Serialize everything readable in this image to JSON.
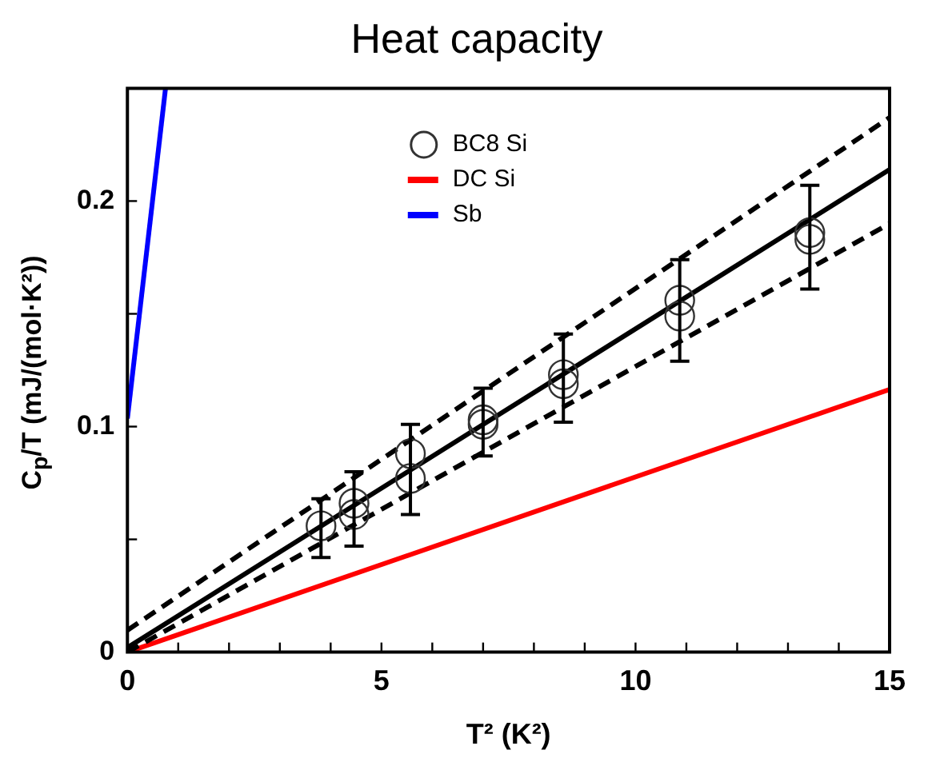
{
  "chart_data": {
    "type": "scatter",
    "title": "Heat capacity",
    "xlabel": "T² (K²)",
    "ylabel": "C$_{p}$/T (mJ/(mol·K²))",
    "xlim": [
      0,
      15
    ],
    "xticks": [
      0,
      {
        "value": 1,
        "label": null
      },
      {
        "value": 2,
        "label": null
      },
      {
        "value": 3,
        "label": null
      },
      {
        "value": 4,
        "label": null
      },
      5,
      {
        "value": 6,
        "label": null
      },
      {
        "value": 7,
        "label": null
      },
      {
        "value": 8,
        "label": null
      },
      {
        "value": 9,
        "label": null
      },
      10,
      {
        "value": 11,
        "label": null
      },
      {
        "value": 12,
        "label": null
      },
      {
        "value": 13,
        "label": null
      },
      {
        "value": 14,
        "label": null
      },
      15
    ],
    "ylim": [
      0,
      0.25
    ],
    "yticks": [
      0,
      {
        "value": 0.05,
        "label": null
      },
      0.1,
      {
        "value": 0.15,
        "label": null
      },
      0.2
    ],
    "grid": false,
    "legend": "top",
    "series": [
      {
        "name": "BC8 Si",
        "marker": "circle",
        "color": "#333333",
        "x": [
          3.81,
          4.46,
          4.46,
          5.57,
          5.57,
          7.0,
          7.0,
          8.58,
          8.58,
          10.87,
          10.87,
          13.43,
          13.43
        ],
        "values": [
          0.056,
          0.066,
          0.061,
          0.088,
          0.077,
          0.103,
          0.101,
          0.123,
          0.119,
          0.156,
          0.149,
          0.186,
          0.183
        ],
        "errors": [
          [
            0.042,
            0.068
          ],
          [
            0.047,
            0.08
          ],
          null,
          [
            0.061,
            0.101
          ],
          null,
          [
            0.087,
            0.117
          ],
          null,
          [
            0.102,
            0.141
          ],
          null,
          [
            0.129,
            0.174
          ],
          null,
          [
            0.161,
            0.207
          ],
          null
        ]
      },
      {
        "type": "line",
        "marker": "none",
        "line_style": "solid",
        "color": "#000000",
        "x": [
          0,
          15
        ],
        "values": [
          0.002,
          0.214
        ]
      },
      {
        "type": "line",
        "marker": "none",
        "line_style": "dashed",
        "color": "#000000",
        "x": [
          0,
          15
        ],
        "values": [
          0.0097,
          0.237
        ]
      },
      {
        "type": "line",
        "marker": "none",
        "line_style": "dashed",
        "color": "#000000",
        "x": [
          0,
          15
        ],
        "values": [
          0.0,
          0.19
        ]
      },
      {
        "name": "DC Si",
        "type": "line",
        "marker": "none",
        "line_style": "solid",
        "color": "#ff0000",
        "x": [
          0,
          15
        ],
        "values": [
          0,
          0.1165
        ]
      },
      {
        "name": "Sb",
        "type": "line",
        "marker": "none",
        "line_style": "solid",
        "color": "#0000ff",
        "x": [
          0,
          0.75
        ],
        "values": [
          0.1036,
          0.25
        ]
      }
    ]
  }
}
